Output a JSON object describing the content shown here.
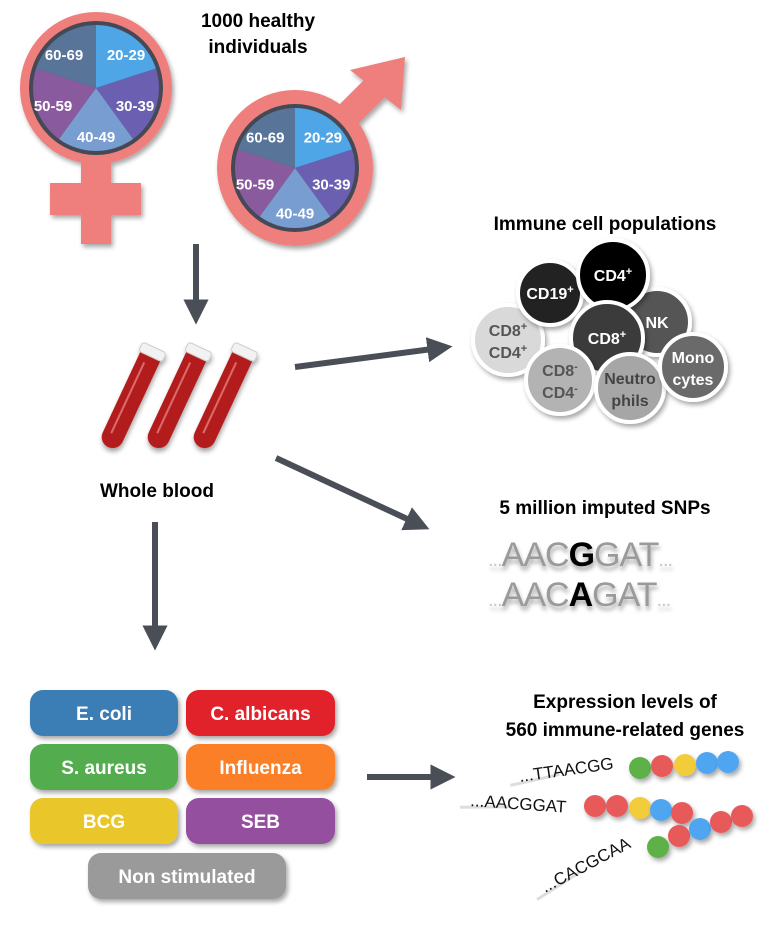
{
  "cohort": {
    "title_line1": "1000 healthy",
    "title_line2": "individuals",
    "symbol_color": "#ee7f7d",
    "age_groups": [
      {
        "label": "20-29",
        "color": "#4fa6e6"
      },
      {
        "label": "30-39",
        "color": "#6a5fb0"
      },
      {
        "label": "40-49",
        "color": "#789dd0"
      },
      {
        "label": "50-59",
        "color": "#8a5a9e"
      },
      {
        "label": "60-69",
        "color": "#587599"
      }
    ]
  },
  "blood": {
    "label": "Whole blood",
    "tube_color": "#b31e1a"
  },
  "immune": {
    "title": "Immune cell populations",
    "cells": [
      {
        "main": "CD8",
        "sup": "+",
        "main2": "CD4",
        "sup2": "+",
        "color": "#d9d9d9",
        "text_color": "#555555"
      },
      {
        "main": "CD19",
        "sup": "+",
        "color": "#222222",
        "text_color": "#ffffff"
      },
      {
        "main": "NK",
        "sup": "",
        "color": "#555555",
        "text_color": "#ffffff"
      },
      {
        "main": "CD4",
        "sup": "+",
        "color": "#000000",
        "text_color": "#ffffff"
      },
      {
        "main": "CD8",
        "sup": "+",
        "color": "#3a3a3a",
        "text_color": "#ffffff"
      },
      {
        "main": "CD8",
        "sup": "-",
        "main2": "CD4",
        "sup2": "-",
        "color": "#b3b3b3",
        "text_color": "#555555"
      },
      {
        "main": "Neutro",
        "sup": "",
        "main2": "phils",
        "sup2": "",
        "color": "#a6a6a6",
        "text_color": "#444444"
      },
      {
        "main": "Mono",
        "sup": "",
        "main2": "cytes",
        "sup2": "",
        "color": "#6b6b6b",
        "text_color": "#ffffff"
      }
    ]
  },
  "snps": {
    "title": "5 million imputed SNPs",
    "rows": [
      {
        "dots_left": "...",
        "left": "AAC",
        "allele": "G",
        "right": "GAT",
        "dots_right": "..."
      },
      {
        "dots_left": "...",
        "left": "AAC",
        "allele": "A",
        "right": "GAT",
        "dots_right": "..."
      }
    ]
  },
  "stimuli": [
    {
      "label": "E. coli",
      "color": "#3a7db5"
    },
    {
      "label": "C. albicans",
      "color": "#e12229"
    },
    {
      "label": "S. aureus",
      "color": "#52ad4f"
    },
    {
      "label": "Influenza",
      "color": "#fb7f26"
    },
    {
      "label": "BCG",
      "color": "#e9c62a"
    },
    {
      "label": "SEB",
      "color": "#954f9f"
    },
    {
      "label": "Non stimulated",
      "color": "#9a9a9a"
    }
  ],
  "expression": {
    "title_line1": "Expression levels of",
    "title_line2": "560 immune-related genes",
    "bead_colors": {
      "green": "#5db146",
      "red": "#e85a5a",
      "yellow": "#f2cc3a",
      "blue": "#4fa5ef"
    },
    "genes": [
      {
        "sequence": "...TTAACGG",
        "beads": [
          "green",
          "red",
          "yellow",
          "blue",
          "blue"
        ]
      },
      {
        "sequence": "...AACGGAT",
        "beads": [
          "red",
          "red",
          "yellow",
          "blue",
          "red"
        ]
      },
      {
        "sequence": "...CACGCAA",
        "beads": [
          "green",
          "red",
          "blue",
          "red",
          "red"
        ]
      }
    ]
  }
}
